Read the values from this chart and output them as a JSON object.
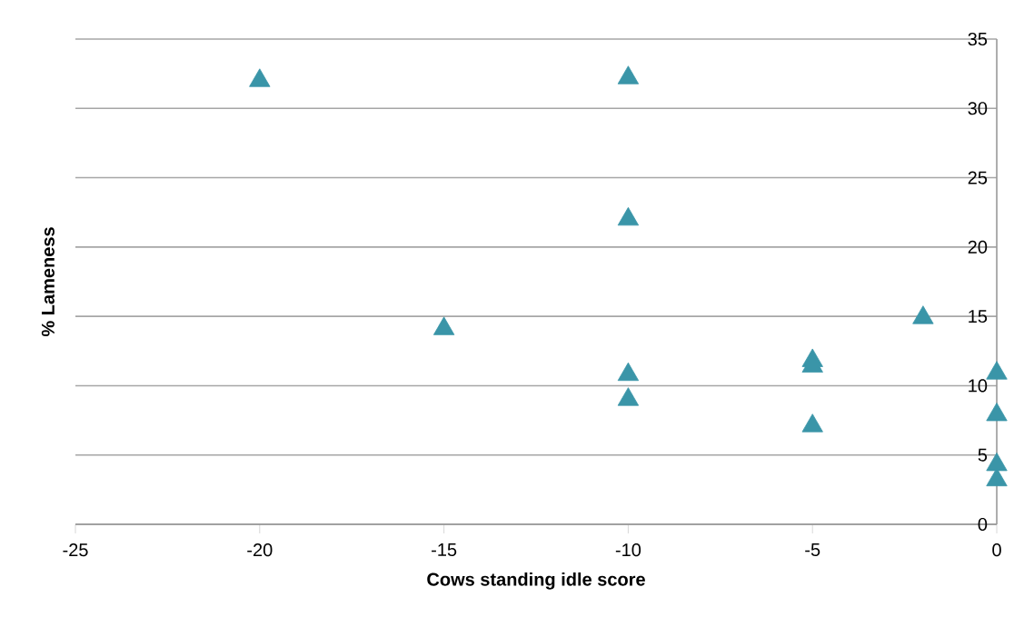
{
  "chart_data": {
    "type": "scatter",
    "xlabel": "Cows standing idle score",
    "ylabel": "% Lameness",
    "x": [
      -20,
      -10,
      -10,
      -15,
      -2,
      -10,
      -10,
      -5,
      -5,
      -5,
      0,
      0,
      0,
      0
    ],
    "series": [
      {
        "color": "#3a95a8",
        "values": [
          32.0,
          32.2,
          22.0,
          14.1,
          14.9,
          10.8,
          9.0,
          11.8,
          11.4,
          7.1,
          10.9,
          7.9,
          4.3,
          3.2
        ]
      }
    ],
    "marker": "triangle",
    "grid": "y",
    "xlim": [
      -25,
      0
    ],
    "xticks": [
      -25,
      -20,
      -15,
      -10,
      -5,
      0
    ],
    "ylim": [
      0,
      35
    ],
    "yticks": [
      0,
      5,
      10,
      15,
      20,
      25,
      30,
      35
    ]
  }
}
